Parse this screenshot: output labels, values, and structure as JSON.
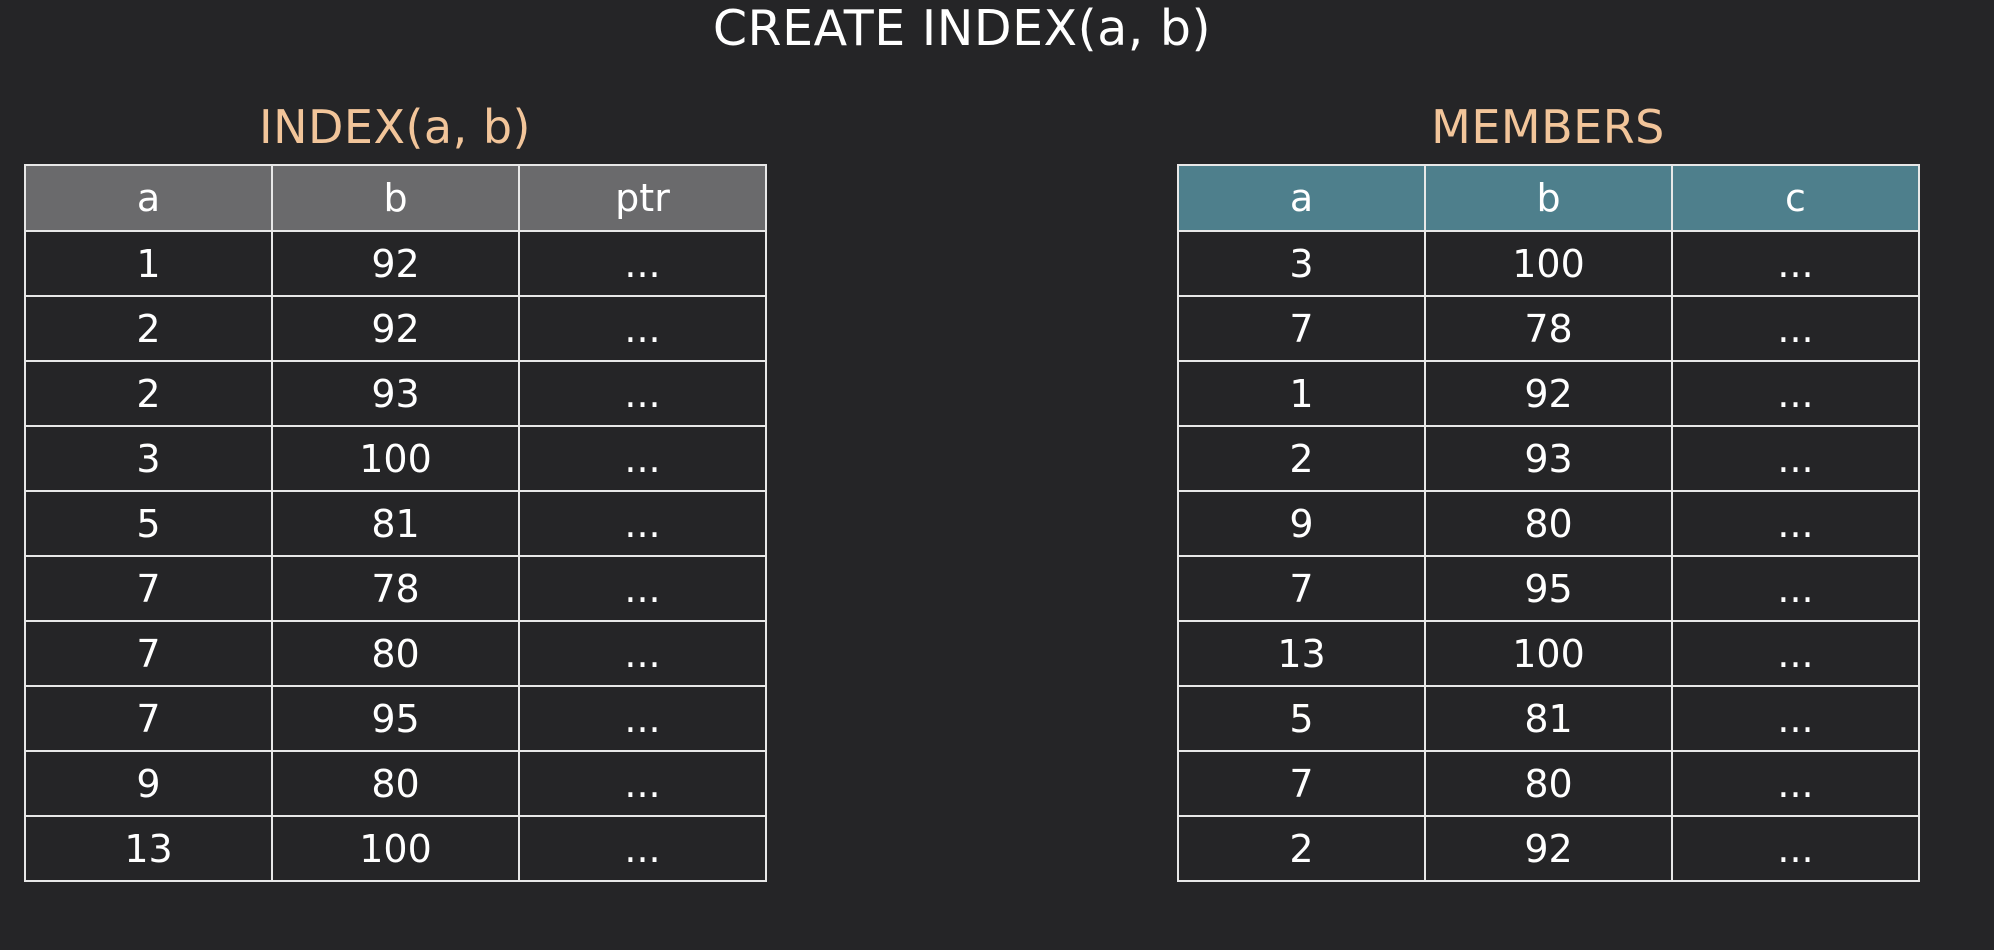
{
  "title": "CREATE INDEX(a, b)",
  "index_table": {
    "title": "INDEX(a, b)",
    "columns": [
      "a",
      "b",
      "ptr"
    ],
    "rows": [
      [
        "1",
        "92",
        "..."
      ],
      [
        "2",
        "92",
        "..."
      ],
      [
        "2",
        "93",
        "..."
      ],
      [
        "3",
        "100",
        "..."
      ],
      [
        "5",
        "81",
        "..."
      ],
      [
        "7",
        "78",
        "..."
      ],
      [
        "7",
        "80",
        "..."
      ],
      [
        "7",
        "95",
        "..."
      ],
      [
        "9",
        "80",
        "..."
      ],
      [
        "13",
        "100",
        "..."
      ]
    ],
    "header_color": "#6a6a6c"
  },
  "members_table": {
    "title": "MEMBERS",
    "columns": [
      "a",
      "b",
      "c"
    ],
    "rows": [
      [
        "3",
        "100",
        "..."
      ],
      [
        "7",
        "78",
        "..."
      ],
      [
        "1",
        "92",
        "..."
      ],
      [
        "2",
        "93",
        "..."
      ],
      [
        "9",
        "80",
        "..."
      ],
      [
        "7",
        "95",
        "..."
      ],
      [
        "13",
        "100",
        "..."
      ],
      [
        "5",
        "81",
        "..."
      ],
      [
        "7",
        "80",
        "..."
      ],
      [
        "2",
        "92",
        "..."
      ]
    ],
    "header_color": "#4e7f8c"
  },
  "colors": {
    "background": "#252527",
    "table_title": "#f2c59a",
    "grid_line": "#e8e8e8",
    "text": "#ffffff"
  }
}
